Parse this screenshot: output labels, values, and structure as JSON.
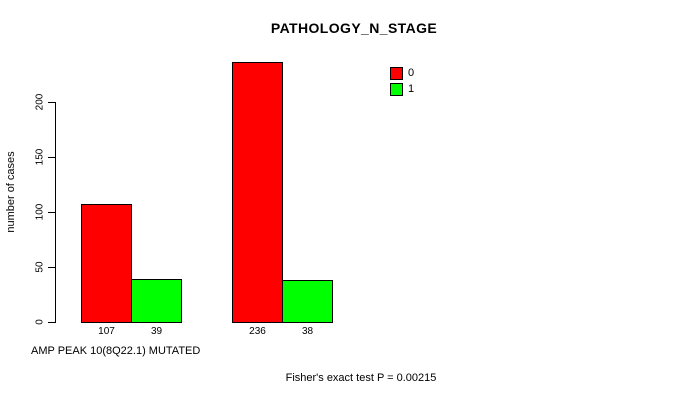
{
  "figure": {
    "title": "PATHOLOGY_N_STAGE",
    "ylabel": "number of cases",
    "xlabel": "AMP PEAK 10(8Q22.1) MUTATED",
    "footer": "Fisher's exact test P = 0.00215"
  },
  "chart_data": {
    "type": "bar",
    "title": "PATHOLOGY_N_STAGE",
    "xlabel": "AMP PEAK 10(8Q22.1) MUTATED",
    "ylabel": "number of cases",
    "annotation": "Fisher's exact test P = 0.00215",
    "categories": [
      "",
      ""
    ],
    "series": [
      {
        "name": "0",
        "color": "#ff0000",
        "values": [
          107,
          236
        ]
      },
      {
        "name": "1",
        "color": "#00ff00",
        "values": [
          39,
          38
        ]
      }
    ],
    "bar_value_labels": [
      [
        "107",
        "39"
      ],
      [
        "236",
        "38"
      ]
    ],
    "yticks": [
      0,
      50,
      100,
      150,
      200
    ],
    "ylim": [
      0,
      240
    ],
    "grid": false,
    "legend_position": "top-right",
    "bar_border_color": "#000000",
    "axis_color": "#000000",
    "background_color": "#ffffff"
  }
}
